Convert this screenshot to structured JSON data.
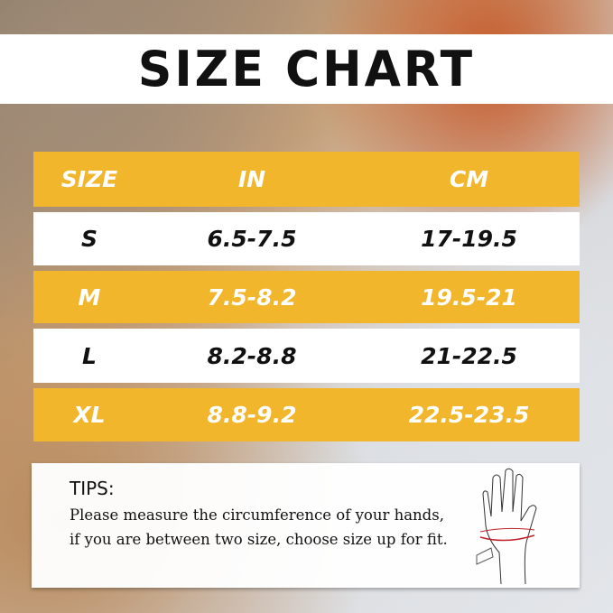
{
  "title": "SIZE CHART",
  "table": {
    "headers": [
      "SIZE",
      "IN",
      "CM"
    ],
    "rows": [
      [
        "S",
        "6.5-7.5",
        "17-19.5"
      ],
      [
        "M",
        "7.5-8.2",
        "19.5-21"
      ],
      [
        "L",
        "8.2-8.8",
        "21-22.5"
      ],
      [
        "XL",
        "8.8-9.2",
        "22.5-23.5"
      ]
    ]
  },
  "tips": {
    "title": "TIPS:",
    "text": "Please measure the circumference of your hands, if you are between two size, choose size up for fit."
  },
  "colors": {
    "accent": "#f1b62b",
    "measure_line": "#c0202a"
  },
  "icons": [
    "hand-measure-icon"
  ]
}
